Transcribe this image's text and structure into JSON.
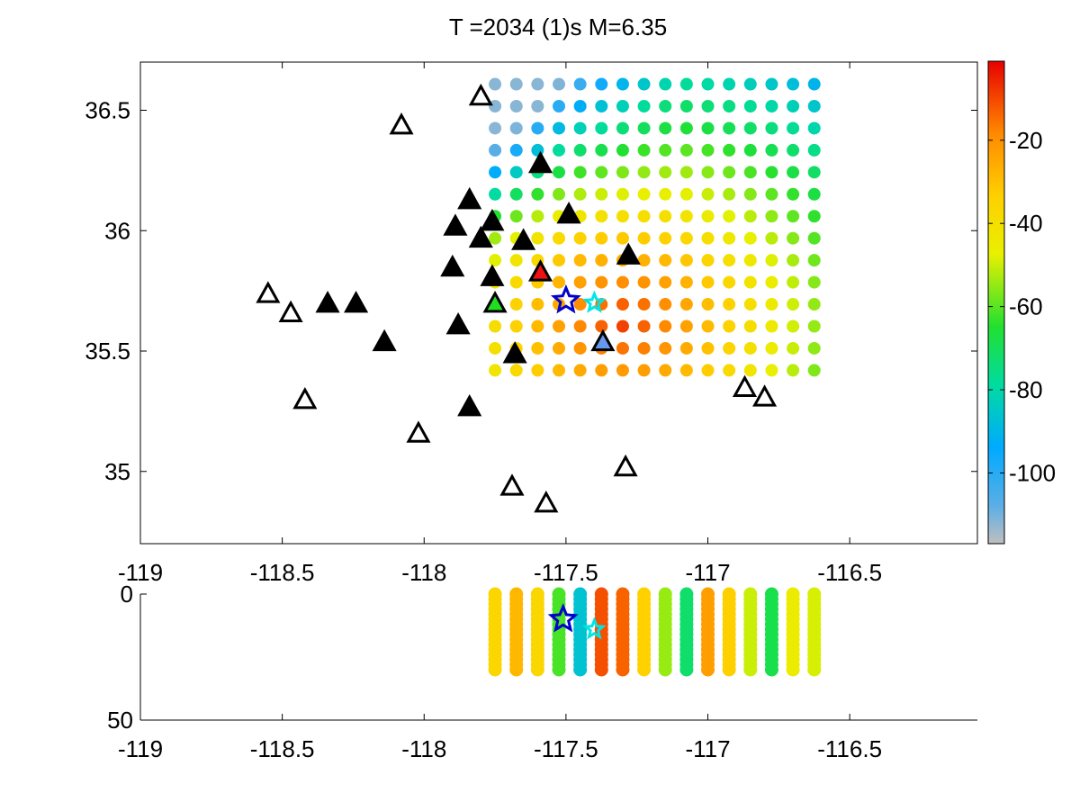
{
  "title": "T =2034 (1)s M=6.35",
  "chart_data": [
    {
      "type": "scatter",
      "name": "map-view",
      "xlim": [
        -119,
        -116.05
      ],
      "ylim": [
        34.7,
        36.7
      ],
      "xticks": [
        "-119",
        "-118.5",
        "-118",
        "-117.5",
        "-117",
        "-116.5"
      ],
      "xtick_values": [
        -119,
        -118.5,
        -118,
        -117.5,
        -117,
        -116.5
      ],
      "yticks": [
        "35",
        "35.5",
        "36",
        "36.5"
      ],
      "ytick_values": [
        35,
        35.5,
        36,
        36.5
      ],
      "grid": false,
      "grid_points": {
        "lon_start": -117.75,
        "lon_step": 0.075,
        "n_lon": 16,
        "lat_start": 35.42,
        "lat_step": 0.0914,
        "n_lat": 14,
        "value_model": "color value at each grid node (colorbar units, approx.)"
      },
      "open_stations": [
        {
          "lon": -118.55,
          "lat": 35.74
        },
        {
          "lon": -118.47,
          "lat": 35.66
        },
        {
          "lon": -118.42,
          "lat": 35.3
        },
        {
          "lon": -118.08,
          "lat": 36.44
        },
        {
          "lon": -118.02,
          "lat": 35.16
        },
        {
          "lon": -117.8,
          "lat": 36.56
        },
        {
          "lon": -117.69,
          "lat": 34.94
        },
        {
          "lon": -117.57,
          "lat": 34.87
        },
        {
          "lon": -117.29,
          "lat": 35.02
        },
        {
          "lon": -116.87,
          "lat": 35.35
        },
        {
          "lon": -116.8,
          "lat": 35.31
        }
      ],
      "filled_stations": [
        {
          "lon": -118.34,
          "lat": 35.7,
          "color": "#000000"
        },
        {
          "lon": -118.24,
          "lat": 35.7,
          "color": "#000000"
        },
        {
          "lon": -118.14,
          "lat": 35.54,
          "color": "#000000"
        },
        {
          "lon": -117.9,
          "lat": 35.85,
          "color": "#000000"
        },
        {
          "lon": -117.89,
          "lat": 36.02,
          "color": "#000000"
        },
        {
          "lon": -117.88,
          "lat": 35.61,
          "color": "#000000"
        },
        {
          "lon": -117.84,
          "lat": 36.13,
          "color": "#000000"
        },
        {
          "lon": -117.84,
          "lat": 35.27,
          "color": "#000000"
        },
        {
          "lon": -117.8,
          "lat": 35.97,
          "color": "#000000"
        },
        {
          "lon": -117.76,
          "lat": 36.04,
          "color": "#000000"
        },
        {
          "lon": -117.76,
          "lat": 35.81,
          "color": "#000000"
        },
        {
          "lon": -117.68,
          "lat": 35.49,
          "color": "#000000"
        },
        {
          "lon": -117.65,
          "lat": 35.96,
          "color": "#000000"
        },
        {
          "lon": -117.59,
          "lat": 36.28,
          "color": "#000000"
        },
        {
          "lon": -117.49,
          "lat": 36.07,
          "color": "#000000"
        },
        {
          "lon": -117.28,
          "lat": 35.9,
          "color": "#000000"
        },
        {
          "lon": -117.75,
          "lat": 35.7,
          "color": "#22dd22"
        },
        {
          "lon": -117.59,
          "lat": 35.83,
          "color": "#ee1111"
        },
        {
          "lon": -117.37,
          "lat": 35.54,
          "color": "#6699ee"
        }
      ],
      "epicenters": [
        {
          "lon": -117.5,
          "lat": 35.71,
          "color": "#0000cc"
        },
        {
          "lon": -117.4,
          "lat": 35.7,
          "color": "#00e5e5"
        }
      ]
    },
    {
      "type": "scatter",
      "name": "depth-section",
      "xlim": [
        -119,
        -116.05
      ],
      "ylim": [
        50,
        0
      ],
      "xticks": [
        "-119",
        "-118.5",
        "-118",
        "-117.5",
        "-117",
        "-116.5"
      ],
      "xtick_values": [
        -119,
        -118.5,
        -118,
        -117.5,
        -117,
        -116.5
      ],
      "yticks": [
        "0",
        "50"
      ],
      "ytick_values": [
        0,
        50
      ],
      "depth_range": [
        0,
        30
      ],
      "epicenters": [
        {
          "lon": -117.51,
          "depth": 10,
          "color": "#0000cc"
        },
        {
          "lon": -117.4,
          "depth": 14,
          "color": "#00e5e5"
        }
      ]
    }
  ],
  "colorbar": {
    "range": [
      -117,
      -1
    ],
    "ticks": [
      "-20",
      "-40",
      "-60",
      "-80",
      "-100"
    ],
    "tick_values": [
      -20,
      -40,
      -60,
      -80,
      -100
    ],
    "colormap": "jet-like (gray low, blue, cyan, green, yellow, orange, red high)"
  }
}
